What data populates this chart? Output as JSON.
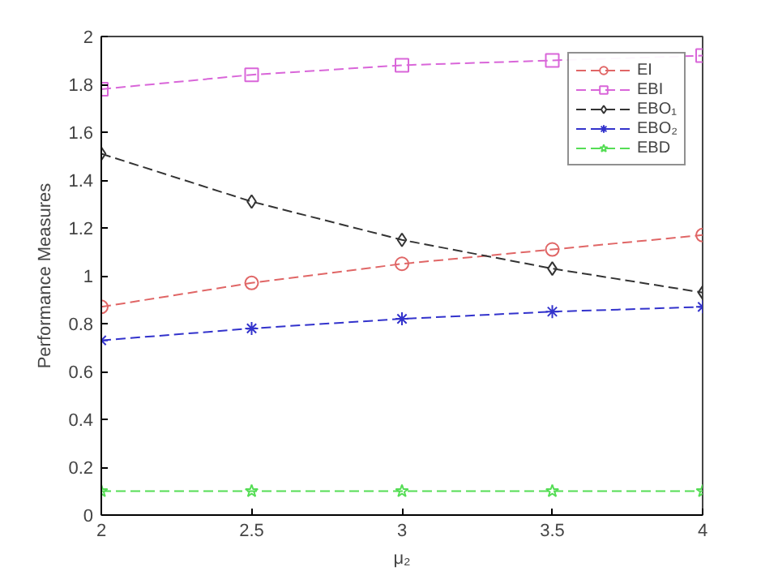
{
  "chart_data": {
    "type": "line",
    "xlabel": "μ₂",
    "ylabel": "Performance Measures",
    "x": [
      2,
      2.5,
      3,
      3.5,
      4
    ],
    "series": [
      {
        "name": "EI",
        "color": "#e06666",
        "marker": "circle",
        "values": [
          0.87,
          0.97,
          1.05,
          1.11,
          1.17
        ]
      },
      {
        "name": "EBI",
        "color": "#d966d9",
        "marker": "square",
        "values": [
          1.78,
          1.84,
          1.88,
          1.9,
          1.92
        ]
      },
      {
        "name": "EBO₁",
        "color": "#333333",
        "marker": "diamond",
        "values": [
          1.51,
          1.31,
          1.15,
          1.03,
          0.93
        ]
      },
      {
        "name": "EBO₂",
        "color": "#3333cc",
        "marker": "cross",
        "values": [
          0.73,
          0.78,
          0.82,
          0.85,
          0.87
        ]
      },
      {
        "name": "EBD",
        "color": "#55dd55",
        "marker": "star",
        "values": [
          0.1,
          0.1,
          0.1,
          0.1,
          0.1
        ]
      }
    ],
    "xlim": [
      2,
      4
    ],
    "xticks": [
      2,
      2.5,
      3,
      3.5,
      4
    ],
    "ylim": [
      0,
      2
    ],
    "yticks": [
      0,
      0.2,
      0.4,
      0.6,
      0.8,
      1,
      1.2,
      1.4,
      1.6,
      1.8,
      2
    ],
    "grid": false,
    "legend": "top right",
    "line_style": "dashed"
  }
}
